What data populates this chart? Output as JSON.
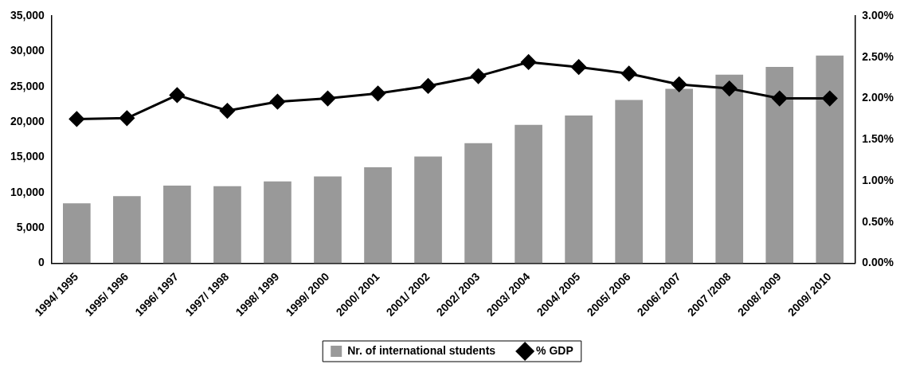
{
  "chart_data": {
    "type": "bar",
    "categories": [
      "1994/ 1995",
      "1995/ 1996",
      "1996/ 1997",
      "1997/ 1998",
      "1998/ 1999",
      "1999/ 2000",
      "2000/ 2001",
      "2001/ 2002",
      "2002/ 2003",
      "2003/ 2004",
      "2004/ 2005",
      "2005/ 2006",
      "2006/ 2007",
      "2007 /2008",
      "2008/ 2009",
      "2009/ 2010"
    ],
    "series": [
      {
        "name": "Nr. of international students",
        "color": "#999999",
        "values": [
          8500,
          9500,
          11000,
          10900,
          11600,
          12300,
          13600,
          15100,
          17000,
          19600,
          20900,
          23100,
          24700,
          26700,
          27800,
          29400
        ]
      },
      {
        "name": "% GDP",
        "type": "line",
        "axis": "y2",
        "color": "#000000",
        "values": [
          1.75,
          1.76,
          2.04,
          1.85,
          1.96,
          2.0,
          2.06,
          2.15,
          2.27,
          2.44,
          2.38,
          2.3,
          2.17,
          2.12,
          2.0,
          2.0
        ]
      }
    ],
    "ylim": [
      0,
      35000
    ],
    "yticks": [
      {
        "value": 0,
        "label": "0"
      },
      {
        "value": 5000,
        "label": "5,000"
      },
      {
        "value": 10000,
        "label": "10,000"
      },
      {
        "value": 15000,
        "label": "15,000"
      },
      {
        "value": 20000,
        "label": "20,000"
      },
      {
        "value": 25000,
        "label": "25,000"
      },
      {
        "value": 30000,
        "label": "30,000"
      },
      {
        "value": 35000,
        "label": "35,000"
      }
    ],
    "y2lim": [
      0,
      3
    ],
    "y2ticks": [
      {
        "value": 0,
        "label": "0.00%"
      },
      {
        "value": 0.5,
        "label": "0.50%"
      },
      {
        "value": 1,
        "label": "1.00%"
      },
      {
        "value": 1.5,
        "label": "1.50%"
      },
      {
        "value": 2,
        "label": "2.00%"
      },
      {
        "value": 2.5,
        "label": "2.50%"
      },
      {
        "value": 3,
        "label": "3.00%"
      }
    ],
    "grid": false,
    "legend": "bottom",
    "marker": "diamond",
    "line_style": "solid"
  }
}
